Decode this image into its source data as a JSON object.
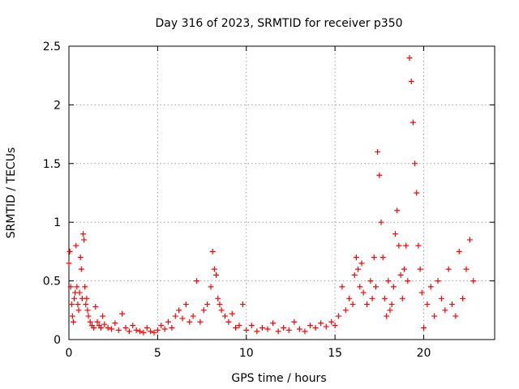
{
  "chart_data": {
    "type": "scatter",
    "title": "Day 316 of 2023, SRMTID for receiver p350",
    "xlabel": "GPS time / hours",
    "ylabel": "SRMTID / TECUs",
    "xlim": [
      0,
      24
    ],
    "ylim": [
      0,
      2.5
    ],
    "x_ticks": [
      0,
      5,
      10,
      15,
      20
    ],
    "y_ticks": [
      0,
      0.5,
      1,
      1.5,
      2,
      2.5
    ],
    "x_tick_labels": [
      "0",
      "5",
      "10",
      "15",
      "20"
    ],
    "y_tick_labels": [
      "0",
      "0.5",
      "1",
      "1.5",
      "2",
      "2.5"
    ],
    "grid": true,
    "marker": "plus",
    "series": [
      {
        "name": "SRMTID",
        "color": "#ff0000",
        "x": [
          0.0,
          0.05,
          0.1,
          0.15,
          0.2,
          0.25,
          0.3,
          0.35,
          0.4,
          0.45,
          0.5,
          0.55,
          0.6,
          0.65,
          0.7,
          0.75,
          0.8,
          0.85,
          0.9,
          0.95,
          1.0,
          1.05,
          1.1,
          1.2,
          1.3,
          1.4,
          1.5,
          1.6,
          1.7,
          1.8,
          1.9,
          2.0,
          2.2,
          2.4,
          2.6,
          2.8,
          3.0,
          3.2,
          3.4,
          3.6,
          3.8,
          4.0,
          4.2,
          4.4,
          4.6,
          4.8,
          5.0,
          5.2,
          5.4,
          5.6,
          5.8,
          6.0,
          6.2,
          6.4,
          6.6,
          6.8,
          7.0,
          7.2,
          7.4,
          7.6,
          7.8,
          8.0,
          8.1,
          8.2,
          8.3,
          8.4,
          8.5,
          8.6,
          8.8,
          9.0,
          9.2,
          9.4,
          9.6,
          9.8,
          10.0,
          10.3,
          10.6,
          10.9,
          11.2,
          11.5,
          11.8,
          12.1,
          12.4,
          12.7,
          13.0,
          13.3,
          13.6,
          13.9,
          14.2,
          14.5,
          14.8,
          15.0,
          15.2,
          15.4,
          15.6,
          15.8,
          16.0,
          16.1,
          16.2,
          16.3,
          16.4,
          16.5,
          16.6,
          16.8,
          17.0,
          17.1,
          17.2,
          17.3,
          17.4,
          17.5,
          17.6,
          17.7,
          17.8,
          17.9,
          18.0,
          18.1,
          18.2,
          18.3,
          18.4,
          18.5,
          18.6,
          18.7,
          18.8,
          18.9,
          19.0,
          19.1,
          19.2,
          19.3,
          19.4,
          19.5,
          19.6,
          19.7,
          19.8,
          19.9,
          20.0,
          20.2,
          20.4,
          20.6,
          20.8,
          21.0,
          21.2,
          21.4,
          21.6,
          21.8,
          22.0,
          22.2,
          22.4,
          22.6,
          22.8
        ],
        "y": [
          0.65,
          0.75,
          0.45,
          0.3,
          0.2,
          0.15,
          0.35,
          0.4,
          0.8,
          0.45,
          0.3,
          0.25,
          0.4,
          0.7,
          0.6,
          0.35,
          0.9,
          0.85,
          0.45,
          0.3,
          0.35,
          0.25,
          0.2,
          0.15,
          0.12,
          0.1,
          0.28,
          0.15,
          0.12,
          0.1,
          0.2,
          0.13,
          0.1,
          0.09,
          0.14,
          0.08,
          0.22,
          0.1,
          0.07,
          0.12,
          0.08,
          0.07,
          0.06,
          0.1,
          0.07,
          0.06,
          0.08,
          0.12,
          0.09,
          0.15,
          0.1,
          0.2,
          0.25,
          0.18,
          0.3,
          0.15,
          0.2,
          0.5,
          0.15,
          0.25,
          0.3,
          0.45,
          0.75,
          0.6,
          0.55,
          0.35,
          0.3,
          0.25,
          0.2,
          0.15,
          0.22,
          0.1,
          0.12,
          0.3,
          0.08,
          0.12,
          0.07,
          0.1,
          0.09,
          0.14,
          0.07,
          0.1,
          0.08,
          0.15,
          0.09,
          0.07,
          0.12,
          0.1,
          0.14,
          0.11,
          0.15,
          0.12,
          0.2,
          0.45,
          0.25,
          0.35,
          0.3,
          0.55,
          0.7,
          0.6,
          0.45,
          0.65,
          0.4,
          0.3,
          0.5,
          0.35,
          0.7,
          0.45,
          1.6,
          1.4,
          1.0,
          0.7,
          0.35,
          0.2,
          0.5,
          0.25,
          0.3,
          0.45,
          0.9,
          1.1,
          0.8,
          0.55,
          0.35,
          0.6,
          0.8,
          0.5,
          2.4,
          2.2,
          1.85,
          1.5,
          1.25,
          0.8,
          0.6,
          0.4,
          0.1,
          0.3,
          0.45,
          0.2,
          0.5,
          0.35,
          0.25,
          0.6,
          0.3,
          0.2,
          0.75,
          0.35,
          0.6,
          0.85,
          0.5
        ]
      }
    ]
  }
}
